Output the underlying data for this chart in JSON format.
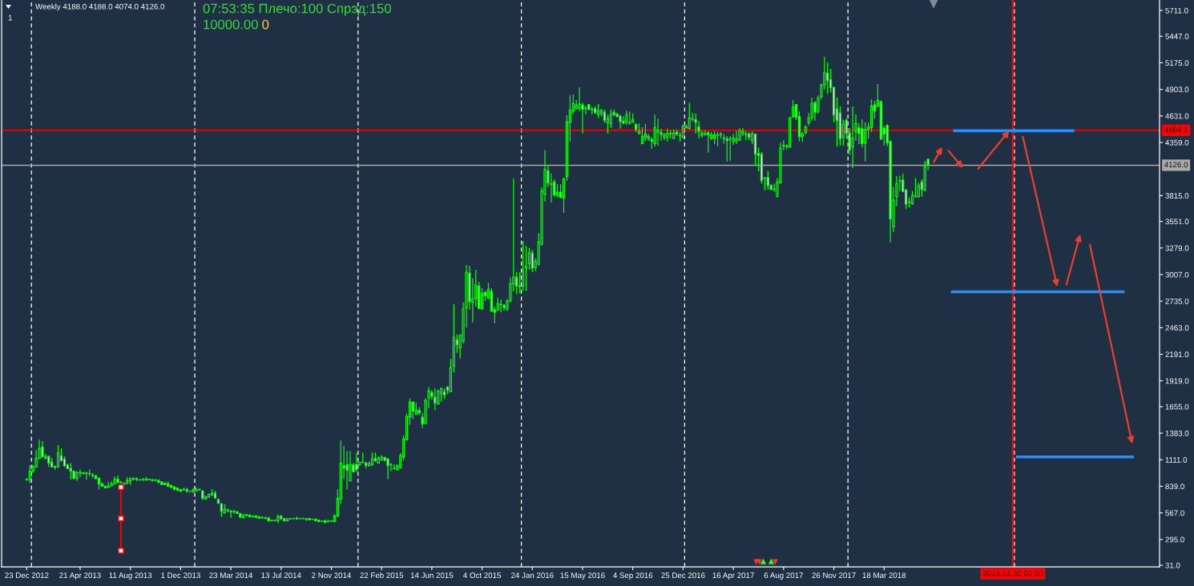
{
  "chart_data": {
    "type": "candlestick",
    "title": "Weekly 4188.0 4188.0 4074.0 4126.0",
    "annotations": [
      "1",
      "07:53:35 Плечо:100 Спрэд:150",
      "10000.00",
      "0"
    ],
    "xlim": [
      "2012-10-28",
      "2019-11-22"
    ],
    "xticks": [
      {
        "value": "2012-12-23",
        "label": "23 Dec 2012"
      },
      {
        "value": "2013-04-21",
        "label": "21 Apr 2013"
      },
      {
        "value": "2013-08-11",
        "label": "11 Aug 2013"
      },
      {
        "value": "2013-12-01",
        "label": "1 Dec 2013"
      },
      {
        "value": "2014-03-23",
        "label": "23 Mar 2014"
      },
      {
        "value": "2014-07-13",
        "label": "13 Jul 2014"
      },
      {
        "value": "2014-11-02",
        "label": "2 Nov 2014"
      },
      {
        "value": "2015-02-22",
        "label": "22 Feb 2015"
      },
      {
        "value": "2015-06-14",
        "label": "14 Jun 2015"
      },
      {
        "value": "2015-10-04",
        "label": "4 Oct 2015"
      },
      {
        "value": "2016-01-24",
        "label": "24 Jan 2016"
      },
      {
        "value": "2016-05-15",
        "label": "15 May 2016"
      },
      {
        "value": "2016-09-04",
        "label": "4 Sep 2016"
      },
      {
        "value": "2016-12-25",
        "label": "25 Dec 2016"
      },
      {
        "value": "2017-04-16",
        "label": "16 Apr 2017"
      },
      {
        "value": "2017-08-06",
        "label": "6 Aug 2017"
      },
      {
        "value": "2017-11-26",
        "label": "26 Nov 2017"
      },
      {
        "value": "2018-03-18",
        "label": "18 Mar 2018"
      }
    ],
    "ylim": [
      15,
      5818
    ],
    "yticks": [
      {
        "value": 31,
        "label": "31.0"
      },
      {
        "value": 295,
        "label": "295.0"
      },
      {
        "value": 567,
        "label": "567.0"
      },
      {
        "value": 839,
        "label": "839.0"
      },
      {
        "value": 1111,
        "label": "1111.0"
      },
      {
        "value": 1383,
        "label": "1383.0"
      },
      {
        "value": 1655,
        "label": "1655.0"
      },
      {
        "value": 1919,
        "label": "1919.0"
      },
      {
        "value": 2191,
        "label": "2191.0"
      },
      {
        "value": 2463,
        "label": "2463.0"
      },
      {
        "value": 2735,
        "label": "2735.0"
      },
      {
        "value": 3007,
        "label": "3007.0"
      },
      {
        "value": 3279,
        "label": "3279.0"
      },
      {
        "value": 3551,
        "label": "3551.0"
      },
      {
        "value": 3815,
        "label": "3815.0"
      },
      {
        "value": 4359,
        "label": "4359.0"
      },
      {
        "value": 4631,
        "label": "4631.0"
      },
      {
        "value": 4903,
        "label": "4903.0"
      },
      {
        "value": 5175,
        "label": "5175.0"
      },
      {
        "value": 5447,
        "label": "5447.0"
      },
      {
        "value": 5711,
        "label": "5711.0"
      }
    ],
    "series": [
      {
        "color": "#00ff00",
        "x": [
          "2012-12-23",
          "2012-12-30",
          "2013-01-06",
          "2013-01-13",
          "2013-01-20",
          "2013-02-03",
          "2013-03-03",
          "2013-04-14",
          "2013-06-23",
          "2013-06-30",
          "2013-07-07",
          "2013-08-04",
          "2013-08-11",
          "2013-08-18",
          "2013-08-25",
          "2013-09-08",
          "2013-09-15",
          "2013-10-06",
          "2013-12-08",
          "2013-12-29",
          "2014-01-05",
          "2014-01-12",
          "2014-01-26",
          "2014-02-02",
          "2014-02-09",
          "2014-03-09",
          "2014-03-16",
          "2014-03-30",
          "2014-04-20",
          "2014-04-27",
          "2014-06-01",
          "2014-06-22",
          "2014-06-29",
          "2014-07-06",
          "2014-07-27",
          "2014-08-03",
          "2014-08-10",
          "2014-08-17",
          "2014-08-24",
          "2014-08-31",
          "2014-09-07",
          "2014-10-26",
          "2014-11-02",
          "2014-11-09",
          "2014-11-16",
          "2014-11-23",
          "2014-12-14",
          "2015-01-04",
          "2015-01-11",
          "2015-01-25",
          "2015-02-01",
          "2015-02-15",
          "2015-02-22",
          "2015-03-22",
          "2015-03-29",
          "2015-04-05",
          "2015-04-12",
          "2015-04-19",
          "2015-04-26",
          "2015-05-10",
          "2015-05-31",
          "2015-06-07",
          "2015-06-28",
          "2015-07-05",
          "2015-07-26",
          "2015-08-02",
          "2015-08-16",
          "2015-08-23",
          "2015-08-30",
          "2015-09-13",
          "2015-09-20",
          "2015-10-04",
          "2015-10-18",
          "2015-11-08",
          "2015-11-15",
          "2015-11-29",
          "2015-12-06",
          "2015-12-13",
          "2015-12-27",
          "2016-01-03",
          "2016-01-10",
          "2016-01-17",
          "2016-01-31",
          "2016-02-07",
          "2016-02-14",
          "2016-02-21",
          "2016-03-20",
          "2016-04-03",
          "2016-04-10",
          "2016-04-17",
          "2016-04-24",
          "2016-05-01",
          "2016-05-08",
          "2016-05-22",
          "2016-06-05",
          "2016-06-19",
          "2016-06-26",
          "2016-07-10",
          "2016-07-17",
          "2016-08-21",
          "2016-08-28",
          "2016-09-04",
          "2016-09-18",
          "2016-09-25",
          "2016-10-02",
          "2016-10-09",
          "2016-10-23",
          "2016-10-30",
          "2016-11-13",
          "2016-11-20",
          "2016-11-27",
          "2016-12-04",
          "2016-12-18",
          "2016-12-25",
          "2017-01-01",
          "2017-01-08",
          "2017-01-15",
          "2017-02-05",
          "2017-02-12",
          "2017-02-26",
          "2017-03-05",
          "2017-03-12",
          "2017-03-19",
          "2017-03-26",
          "2017-04-09",
          "2017-04-16",
          "2017-04-23",
          "2017-04-30",
          "2017-05-07",
          "2017-05-14",
          "2017-05-28",
          "2017-06-25",
          "2017-07-16",
          "2017-07-23",
          "2017-07-30",
          "2017-08-06",
          "2017-08-13",
          "2017-08-20",
          "2017-08-27",
          "2017-09-17",
          "2017-09-24",
          "2017-10-01",
          "2017-10-08",
          "2017-10-22",
          "2017-10-29",
          "2017-11-05",
          "2017-12-17",
          "2018-01-07",
          "2018-01-14",
          "2018-02-04",
          "2018-02-11",
          "2018-02-18",
          "2018-03-04",
          "2018-04-08",
          "2018-04-15",
          "2018-04-22",
          "2018-05-13",
          "2018-05-20",
          "2018-05-27",
          "2018-06-03",
          "2018-06-17"
        ],
        "ohlc": [
          [
            909,
            922,
            895,
            912
          ],
          [
            909,
            1051,
            873,
            996
          ],
          [
            996,
            1059,
            977,
            1042
          ],
          [
            1037,
            1209,
            1031,
            1127
          ],
          [
            1127,
            1318,
            1125,
            1228
          ],
          [
            1124,
            1171,
            1113,
            1146
          ],
          [
            1037,
            1261,
            1031,
            1179
          ],
          [
            919,
            993,
            896,
            982
          ],
          [
            829,
            886,
            827,
            843
          ],
          [
            846,
            887,
            840,
            867
          ],
          [
            865,
            941,
            859,
            909
          ],
          [
            873,
            933,
            859,
            900
          ],
          [
            895,
            928,
            854,
            922
          ],
          [
            914,
            930,
            900,
            917
          ],
          [
            909,
            928,
            895,
            917
          ],
          [
            906,
            922,
            895,
            909
          ],
          [
            906,
            933,
            895,
            914
          ],
          [
            900,
            915,
            892,
            903
          ],
          [
            805,
            824,
            791,
            807
          ],
          [
            783,
            818,
            777,
            802
          ],
          [
            791,
            824,
            783,
            807
          ],
          [
            805,
            818,
            791,
            807
          ],
          [
            709,
            745,
            701,
            736
          ],
          [
            728,
            764,
            723,
            756
          ],
          [
            747,
            810,
            742,
            769
          ],
          [
            567,
            654,
            559,
            605
          ],
          [
            589,
            613,
            572,
            594
          ],
          [
            581,
            600,
            559,
            584
          ],
          [
            518,
            551,
            515,
            545
          ],
          [
            542,
            556,
            531,
            548
          ],
          [
            518,
            531,
            507,
            521
          ],
          [
            488,
            496,
            485,
            492
          ],
          [
            490,
            496,
            488,
            493
          ],
          [
            485,
            551,
            463,
            531
          ],
          [
            485,
            512,
            482,
            507
          ],
          [
            505,
            515,
            501,
            510
          ],
          [
            507,
            518,
            504,
            510
          ],
          [
            507,
            529,
            496,
            510
          ],
          [
            507,
            515,
            504,
            510
          ],
          [
            507,
            518,
            504,
            510
          ],
          [
            502,
            518,
            485,
            505
          ],
          [
            477,
            496,
            474,
            482
          ],
          [
            482,
            490,
            477,
            485
          ],
          [
            477,
            551,
            474,
            537
          ],
          [
            537,
            808,
            526,
            717
          ],
          [
            709,
            1308,
            657,
            1078
          ],
          [
            895,
            1201,
            895,
            1064
          ],
          [
            1058,
            1090,
            1050,
            1085
          ],
          [
            1082,
            1186,
            1077,
            1085
          ],
          [
            1050,
            1090,
            1042,
            1072
          ],
          [
            1058,
            1186,
            1050,
            1118
          ],
          [
            1077,
            1145,
            1072,
            1126
          ],
          [
            1110,
            1159,
            1104,
            1137
          ],
          [
            1020,
            1064,
            1009,
            1023
          ],
          [
            1009,
            1064,
            1003,
            1050
          ],
          [
            1031,
            1178,
            1023,
            1154
          ],
          [
            1137,
            1359,
            1104,
            1323
          ],
          [
            1315,
            1582,
            1309,
            1555
          ],
          [
            1550,
            1738,
            1468,
            1703
          ],
          [
            1577,
            1697,
            1569,
            1618
          ],
          [
            1481,
            1741,
            1473,
            1719
          ],
          [
            1746,
            1856,
            1637,
            1815
          ],
          [
            1684,
            1829,
            1673,
            1815
          ],
          [
            1788,
            1856,
            1706,
            1837
          ],
          [
            1807,
            2143,
            1801,
            2053
          ],
          [
            2069,
            2703,
            2006,
            2367
          ],
          [
            2257,
            2397,
            2148,
            2383
          ],
          [
            2328,
            2722,
            2301,
            2653
          ],
          [
            2667,
            3104,
            2465,
            3031
          ],
          [
            2722,
            2970,
            2517,
            2757
          ],
          [
            2763,
            3055,
            2681,
            2899
          ],
          [
            2656,
            2867,
            2648,
            2817
          ],
          [
            2763,
            2921,
            2757,
            2856
          ],
          [
            2648,
            2771,
            2634,
            2711
          ],
          [
            2700,
            2752,
            2621,
            2703
          ],
          [
            2656,
            2757,
            2634,
            2735
          ],
          [
            2735,
            2976,
            2730,
            2916
          ],
          [
            2910,
            3992,
            2834,
            2981
          ],
          [
            2885,
            3031,
            2812,
            2891
          ],
          [
            2888,
            3350,
            2845,
            3047
          ],
          [
            3072,
            3299,
            2840,
            3091
          ],
          [
            3118,
            3282,
            3058,
            3227
          ],
          [
            3080,
            3173,
            3044,
            3140
          ],
          [
            3113,
            3432,
            3099,
            3339
          ],
          [
            3318,
            3900,
            3304,
            3864
          ],
          [
            3831,
            4282,
            3755,
            4083
          ],
          [
            3818,
            3932,
            3796,
            3850
          ],
          [
            3790,
            3998,
            3637,
            3987
          ],
          [
            4009,
            4637,
            3965,
            4569
          ],
          [
            4569,
            4842,
            4370,
            4689
          ],
          [
            4684,
            4853,
            4651,
            4758
          ],
          [
            4706,
            4793,
            4698,
            4744
          ],
          [
            4711,
            4924,
            4676,
            4752
          ],
          [
            4706,
            4738,
            4648,
            4711
          ],
          [
            4697,
            4725,
            4648,
            4700
          ],
          [
            4648,
            4752,
            4610,
            4684
          ],
          [
            4656,
            4703,
            4629,
            4684
          ],
          [
            4566,
            4643,
            4452,
            4602
          ],
          [
            4553,
            4698,
            4506,
            4643
          ],
          [
            4566,
            4684,
            4539,
            4643
          ],
          [
            4558,
            4676,
            4542,
            4561
          ],
          [
            4569,
            4656,
            4561,
            4594
          ],
          [
            4452,
            4553,
            4446,
            4474
          ],
          [
            4348,
            4515,
            4342,
            4424
          ],
          [
            4411,
            4547,
            4375,
            4446
          ],
          [
            4397,
            4446,
            4375,
            4419
          ],
          [
            4348,
            4643,
            4315,
            4512
          ],
          [
            4465,
            4602,
            4329,
            4484
          ],
          [
            4411,
            4457,
            4383,
            4438
          ],
          [
            4411,
            4501,
            4370,
            4452
          ],
          [
            4449,
            4484,
            4402,
            4452
          ],
          [
            4402,
            4493,
            4391,
            4457
          ],
          [
            4427,
            4465,
            4370,
            4430
          ],
          [
            4411,
            4539,
            4402,
            4528
          ],
          [
            4512,
            4539,
            4501,
            4525
          ],
          [
            4501,
            4766,
            4493,
            4610
          ],
          [
            4600,
            4662,
            4575,
            4602
          ],
          [
            4433,
            4484,
            4411,
            4457
          ],
          [
            4449,
            4484,
            4424,
            4452
          ],
          [
            4402,
            4465,
            4383,
            4438
          ],
          [
            4402,
            4474,
            4342,
            4438
          ],
          [
            4435,
            4465,
            4320,
            4438
          ],
          [
            4443,
            4465,
            4397,
            4446
          ],
          [
            4402,
            4446,
            4348,
            4405
          ],
          [
            4394,
            4424,
            4173,
            4397
          ],
          [
            4370,
            4446,
            4337,
            4405
          ],
          [
            4375,
            4479,
            4342,
            4397
          ],
          [
            4383,
            4506,
            4375,
            4479
          ],
          [
            4452,
            4506,
            4424,
            4474
          ],
          [
            4443,
            4474,
            4383,
            4446
          ],
          [
            4378,
            4474,
            4342,
            4446
          ],
          [
            3993,
            4006,
            3870,
            3995
          ],
          [
            3880,
            3938,
            3851,
            3883
          ],
          [
            3804,
            3995,
            3801,
            3955
          ],
          [
            3946,
            4356,
            3941,
            4301
          ],
          [
            4326,
            4383,
            4280,
            4329
          ],
          [
            4318,
            4342,
            4288,
            4321
          ],
          [
            4315,
            4621,
            4301,
            4610
          ],
          [
            4621,
            4793,
            4616,
            4725
          ],
          [
            4424,
            4465,
            4364,
            4446
          ],
          [
            4460,
            4534,
            4446,
            4520
          ],
          [
            4561,
            4662,
            4534,
            4610
          ],
          [
            4616,
            4818,
            4583,
            4758
          ],
          [
            4678,
            4842,
            4656,
            4815
          ],
          [
            4829,
            4963,
            4801,
            4949
          ],
          [
            4949,
            5236,
            4902,
            5072
          ],
          [
            4411,
            4594,
            4329,
            4547
          ],
          [
            4315,
            4730,
            4097,
            4405
          ],
          [
            4474,
            4648,
            4378,
            4550
          ],
          [
            4351,
            4566,
            4165,
            4493
          ],
          [
            4493,
            4561,
            4397,
            4515
          ],
          [
            4515,
            4799,
            4465,
            4733
          ],
          [
            4730,
            4957,
            4725,
            4790
          ],
          [
            3496,
            3905,
            3441,
            3769
          ],
          [
            3804,
            4015,
            3709,
            3938
          ],
          [
            3965,
            4020,
            3864,
            3968
          ],
          [
            3747,
            3796,
            3695,
            3750
          ],
          [
            3733,
            3864,
            3720,
            3815
          ],
          [
            3807,
            3995,
            3796,
            3810
          ],
          [
            3804,
            3946,
            3796,
            3913
          ],
          [
            3873,
            4170,
            3859,
            4110
          ]
        ]
      },
      {
        "color": "#ffffff",
        "x": [
          "2013-01-27",
          "2013-02-10",
          "2013-02-17",
          "2013-02-24",
          "2013-03-10",
          "2013-03-17",
          "2013-03-24",
          "2013-03-31",
          "2013-04-07",
          "2013-04-21",
          "2013-04-28",
          "2013-05-05",
          "2013-05-12",
          "2013-05-19",
          "2013-05-26",
          "2013-06-02",
          "2013-06-09",
          "2013-06-16",
          "2013-07-14",
          "2013-07-21",
          "2013-07-28",
          "2013-09-01",
          "2013-09-22",
          "2013-09-29",
          "2013-10-13",
          "2013-10-20",
          "2013-10-27",
          "2013-11-03",
          "2013-11-10",
          "2013-11-17",
          "2013-11-24",
          "2013-12-01",
          "2013-12-15",
          "2013-12-22",
          "2014-01-19",
          "2014-02-16",
          "2014-02-23",
          "2014-03-02",
          "2014-03-23",
          "2014-04-06",
          "2014-04-13",
          "2014-05-04",
          "2014-05-11",
          "2014-05-18",
          "2014-05-25",
          "2014-06-08",
          "2014-06-15",
          "2014-07-13",
          "2014-07-20",
          "2014-09-14",
          "2014-09-21",
          "2014-09-28",
          "2014-10-05",
          "2014-10-12",
          "2014-10-19",
          "2014-11-30",
          "2014-12-07",
          "2014-12-21",
          "2014-12-28",
          "2015-01-18",
          "2015-02-08",
          "2015-03-01",
          "2015-03-08",
          "2015-03-15",
          "2015-05-03",
          "2015-05-17",
          "2015-05-24",
          "2015-06-14",
          "2015-06-21",
          "2015-07-12",
          "2015-07-19",
          "2015-08-09",
          "2015-09-06",
          "2015-09-27",
          "2015-10-11",
          "2015-10-25",
          "2015-11-01",
          "2015-11-22",
          "2015-12-20",
          "2016-01-24",
          "2016-02-28",
          "2016-03-06",
          "2016-03-13",
          "2016-03-27",
          "2016-05-15",
          "2016-05-29",
          "2016-06-12",
          "2016-07-03",
          "2016-07-24",
          "2016-07-31",
          "2016-08-07",
          "2016-08-14",
          "2016-09-11",
          "2016-10-16",
          "2016-11-06",
          "2016-12-11",
          "2017-01-22",
          "2017-01-29",
          "2017-02-19",
          "2017-04-02",
          "2017-05-21",
          "2017-06-04",
          "2017-06-11",
          "2017-06-18",
          "2017-07-02",
          "2017-07-09",
          "2017-09-03",
          "2017-09-10",
          "2017-10-15",
          "2017-11-12",
          "2017-11-19",
          "2017-11-26",
          "2017-12-03",
          "2017-12-10",
          "2017-12-24",
          "2017-12-31",
          "2018-01-21",
          "2018-01-28",
          "2018-02-25",
          "2018-03-11",
          "2018-03-18",
          "2018-03-25",
          "2018-04-01",
          "2018-04-29",
          "2018-05-06",
          "2018-06-10",
          "2018-06-24"
        ],
        "ohlc": [
          [
            1242,
            1302,
            1133,
            1141
          ],
          [
            1146,
            1154,
            1037,
            1078
          ],
          [
            1086,
            1130,
            1031,
            1037
          ],
          [
            1042,
            1051,
            1010,
            1035
          ],
          [
            1152,
            1228,
            1097,
            1100
          ],
          [
            1119,
            1146,
            1037,
            1051
          ],
          [
            1056,
            1072,
            1015,
            1021
          ],
          [
            1023,
            1078,
            908,
            996
          ],
          [
            993,
            1001,
            909,
            922
          ],
          [
            982,
            1010,
            933,
            976
          ],
          [
            980,
            982,
            955,
            971
          ],
          [
            976,
            988,
            909,
            971
          ],
          [
            971,
            1010,
            941,
            968
          ],
          [
            955,
            977,
            922,
            950
          ],
          [
            947,
            955,
            909,
            919
          ],
          [
            922,
            928,
            805,
            865
          ],
          [
            865,
            878,
            832,
            840
          ],
          [
            840,
            843,
            821,
            824
          ],
          [
            914,
            949,
            873,
            878
          ],
          [
            881,
            895,
            865,
            878
          ],
          [
            870,
            878,
            840,
            865
          ],
          [
            906,
            915,
            898,
            903
          ],
          [
            911,
            917,
            900,
            906
          ],
          [
            906,
            917,
            887,
            900
          ],
          [
            900,
            911,
            873,
            878
          ],
          [
            884,
            890,
            851,
            857
          ],
          [
            873,
            878,
            851,
            857
          ],
          [
            865,
            887,
            832,
            840
          ],
          [
            848,
            856,
            821,
            827
          ],
          [
            832,
            840,
            796,
            810
          ],
          [
            821,
            829,
            796,
            799
          ],
          [
            807,
            810,
            780,
            791
          ],
          [
            807,
            824,
            772,
            791
          ],
          [
            788,
            791,
            783,
            786
          ],
          [
            791,
            802,
            701,
            715
          ],
          [
            769,
            791,
            709,
            720
          ],
          [
            704,
            712,
            660,
            665
          ],
          [
            660,
            668,
            526,
            583
          ],
          [
            584,
            600,
            518,
            578
          ],
          [
            578,
            589,
            559,
            562
          ],
          [
            562,
            567,
            518,
            523
          ],
          [
            545,
            551,
            523,
            526
          ],
          [
            534,
            540,
            518,
            531
          ],
          [
            537,
            540,
            515,
            523
          ],
          [
            529,
            534,
            509,
            512
          ],
          [
            515,
            529,
            501,
            512
          ],
          [
            515,
            518,
            482,
            485
          ],
          [
            534,
            545,
            496,
            507
          ],
          [
            507,
            512,
            482,
            485
          ],
          [
            510,
            515,
            493,
            496
          ],
          [
            502,
            507,
            496,
            499
          ],
          [
            504,
            507,
            485,
            488
          ],
          [
            493,
            496,
            474,
            477
          ],
          [
            482,
            490,
            474,
            479
          ],
          [
            490,
            493,
            466,
            469
          ],
          [
            1048,
            1250,
            913,
            1026
          ],
          [
            1059,
            1201,
            805,
            1004
          ],
          [
            1059,
            1078,
            982,
            988
          ],
          [
            1064,
            1179,
            988,
            1010
          ],
          [
            1077,
            1090,
            1025,
            1055
          ],
          [
            1123,
            1186,
            1091,
            1099
          ],
          [
            1132,
            1145,
            1099,
            1104
          ],
          [
            1118,
            1129,
            913,
            1050
          ],
          [
            1064,
            1077,
            995,
            1061
          ],
          [
            1703,
            1703,
            1528,
            1610
          ],
          [
            1615,
            1651,
            1569,
            1591
          ],
          [
            1547,
            1588,
            1438,
            1479
          ],
          [
            1801,
            1823,
            1727,
            1760
          ],
          [
            1752,
            1842,
            1618,
            1692
          ],
          [
            1807,
            1842,
            1733,
            1774
          ],
          [
            1856,
            1861,
            1782,
            1823
          ],
          [
            2339,
            2394,
            2205,
            2288
          ],
          [
            3022,
            3096,
            2648,
            2730
          ],
          [
            2888,
            2932,
            2648,
            2662
          ],
          [
            2826,
            2839,
            2735,
            2790
          ],
          [
            2834,
            2867,
            2626,
            2632
          ],
          [
            2648,
            2681,
            2506,
            2621
          ],
          [
            2694,
            2703,
            2634,
            2667
          ],
          [
            2981,
            3036,
            2806,
            2888
          ],
          [
            3227,
            3258,
            3031,
            3072
          ],
          [
            4069,
            4129,
            3905,
            3946
          ],
          [
            3935,
            4042,
            3747,
            3932
          ],
          [
            3954,
            3979,
            3800,
            3823
          ],
          [
            3850,
            3932,
            3790,
            3796
          ],
          [
            4744,
            4766,
            4452,
            4697
          ],
          [
            4747,
            4752,
            4689,
            4697
          ],
          [
            4706,
            4730,
            4648,
            4665
          ],
          [
            4670,
            4698,
            4561,
            4588
          ],
          [
            4665,
            4698,
            4629,
            4643
          ],
          [
            4648,
            4665,
            4616,
            4626
          ],
          [
            4629,
            4643,
            4501,
            4574
          ],
          [
            4580,
            4629,
            4542,
            4561
          ],
          [
            4547,
            4547,
            4465,
            4493
          ],
          [
            4391,
            4411,
            4293,
            4370
          ],
          [
            4463,
            4501,
            4375,
            4443
          ],
          [
            4465,
            4490,
            4430,
            4443
          ],
          [
            4594,
            4656,
            4452,
            4566
          ],
          [
            4520,
            4580,
            4402,
            4474
          ],
          [
            4457,
            4474,
            4255,
            4438
          ],
          [
            4397,
            4424,
            4165,
            4378
          ],
          [
            4446,
            4465,
            4383,
            4411
          ],
          [
            4446,
            4452,
            4124,
            4241
          ],
          [
            4247,
            4307,
            4064,
            4225
          ],
          [
            4239,
            4260,
            3941,
            3968
          ],
          [
            4001,
            4069,
            3878,
            3919
          ],
          [
            3919,
            3932,
            3870,
            3878
          ],
          [
            4747,
            4752,
            4588,
            4621
          ],
          [
            4627,
            4678,
            4370,
            4419
          ],
          [
            4766,
            4785,
            4583,
            4670
          ],
          [
            5072,
            5181,
            4856,
            4993
          ],
          [
            5004,
            5113,
            4875,
            4922
          ],
          [
            4924,
            4930,
            4566,
            4643
          ],
          [
            4703,
            4821,
            4315,
            4583
          ],
          [
            4662,
            4730,
            4329,
            4397
          ],
          [
            4588,
            4610,
            4397,
            4452
          ],
          [
            4457,
            4506,
            4233,
            4282
          ],
          [
            4512,
            4556,
            4342,
            4452
          ],
          [
            4501,
            4596,
            4310,
            4348
          ],
          [
            4744,
            4785,
            4602,
            4684
          ],
          [
            4774,
            4793,
            4383,
            4397
          ],
          [
            4506,
            4528,
            4329,
            4446
          ],
          [
            4534,
            4547,
            4321,
            4356
          ],
          [
            4370,
            4375,
            3337,
            3577
          ],
          [
            3974,
            4042,
            3851,
            3859
          ],
          [
            3872,
            3883,
            3681,
            3728
          ],
          [
            3954,
            3982,
            3804,
            3878
          ],
          [
            4188,
            4188,
            4074,
            4126
          ]
        ]
      },
      {
        "type": "line",
        "color": "#1e90ff",
        "x": [
          "2018-08-19",
          "2019-05-16"
        ],
        "values": [
          4480,
          4480
        ]
      },
      {
        "type": "line",
        "color": "#1e90ff",
        "x": [
          "2018-08-14",
          "2019-09-05"
        ],
        "values": [
          2830,
          2830
        ]
      },
      {
        "type": "line",
        "color": "#1e90ff",
        "x": [
          "2019-01-06",
          "2019-09-26"
        ],
        "values": [
          1140,
          1140
        ]
      },
      {
        "type": "line",
        "color": "#ff0000",
        "x": [
          "2013-07-21",
          "2013-07-21",
          "2013-07-21"
        ],
        "values": [
          830,
          510,
          180
        ],
        "marker": "square"
      }
    ],
    "ref_lines": [
      {
        "axis": "x",
        "value": "2013-01-02T12:00",
        "color": "#ffffff",
        "line_style": "dashed"
      },
      {
        "axis": "x",
        "value": "2014-01-01T12:00",
        "color": "#ffffff",
        "line_style": "dashed"
      },
      {
        "axis": "x",
        "value": "2014-12-31T12:00",
        "color": "#ffffff",
        "line_style": "dashed"
      },
      {
        "axis": "x",
        "value": "2015-12-30T12:00",
        "color": "#ffffff",
        "line_style": "dashed"
      },
      {
        "axis": "x",
        "value": "2016-12-28T12:00",
        "color": "#ffffff",
        "line_style": "dashed"
      },
      {
        "axis": "x",
        "value": "2017-12-27T12:00",
        "color": "#ffffff",
        "line_style": "dashed"
      },
      {
        "axis": "x",
        "value": "2019-01-02T12:00",
        "color": "#ffffff",
        "line_style": "dashed"
      },
      {
        "axis": "y",
        "value": 4484.1,
        "label": "4484.1",
        "color": "#ff0000"
      },
      {
        "axis": "y",
        "value": 4126.0,
        "label": "4126.0",
        "color": "#a9a9a9"
      },
      {
        "axis": "x",
        "value": "2018-12-30",
        "label": "2018.12.30 00:00",
        "color": "#ff0000"
      }
    ]
  }
}
